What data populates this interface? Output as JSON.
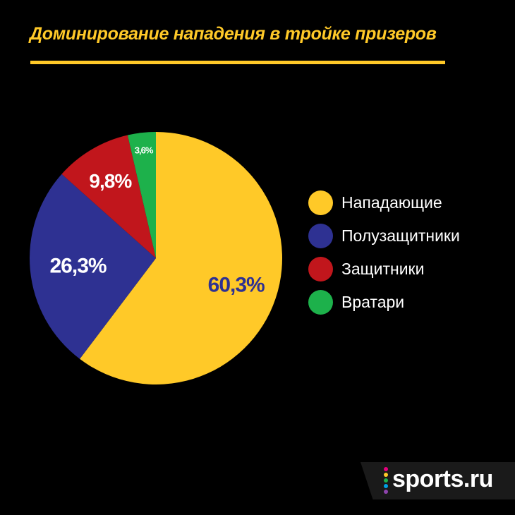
{
  "title": "Доминирование нападения в тройке призеров",
  "chart_data": {
    "type": "pie",
    "title": "Доминирование нападения в тройке призеров",
    "categories": [
      "Нападающие",
      "Полузащитники",
      "Защитники",
      "Вратари"
    ],
    "values": [
      60.3,
      26.3,
      9.8,
      3.6
    ],
    "labels": [
      "60,3%",
      "26,3%",
      "9,8%",
      "3,6%"
    ],
    "colors": [
      "#FFC928",
      "#2E3192",
      "#C1161C",
      "#1DB14B"
    ],
    "label_colors": [
      "#2E3192",
      "#FFFFFF",
      "#FFFFFF",
      "#FFFFFF"
    ],
    "start_angle_deg": 0,
    "direction": "clockwise",
    "legend_placement": "right"
  },
  "brand": {
    "name": "sports.ru",
    "dot_colors": [
      "#E6007E",
      "#FFC928",
      "#1DB14B",
      "#00A0E3",
      "#8E44AD"
    ]
  }
}
